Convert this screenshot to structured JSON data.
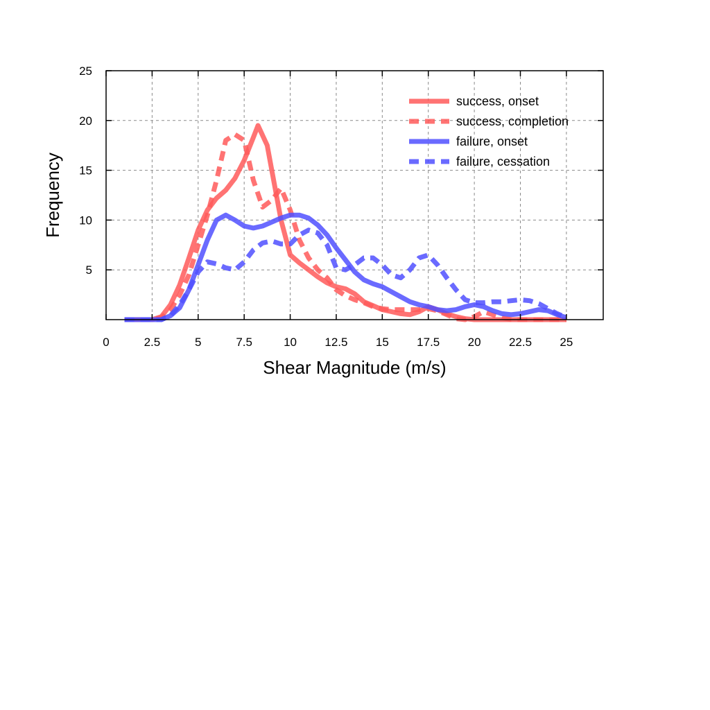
{
  "chart_data": {
    "type": "line",
    "title": "",
    "xlabel": "Shear Magnitude (m/s)",
    "ylabel": "Frequency",
    "xlim": [
      0,
      27
    ],
    "ylim": [
      0,
      25
    ],
    "xticks": [
      0,
      2.5,
      5,
      7.5,
      10,
      12.5,
      15,
      17.5,
      20,
      22.5,
      25
    ],
    "xtick_labels": [
      "0",
      "2.5",
      "5",
      "7.5",
      "10",
      "12.5",
      "15",
      "17.5",
      "20",
      "22.5",
      "25"
    ],
    "yticks": [
      5,
      10,
      15,
      20,
      25
    ],
    "ytick_labels": [
      "5",
      "10",
      "15",
      "20",
      "25"
    ],
    "grid": true,
    "legend_position": "top-right",
    "series": [
      {
        "name": "success, onset",
        "color": "#ff5a5a",
        "dash": "solid",
        "x": [
          1,
          2.5,
          3,
          3.5,
          4,
          4.5,
          5,
          5.5,
          6,
          6.5,
          7,
          7.5,
          8,
          8.25,
          8.75,
          9,
          9.5,
          10,
          10.5,
          11,
          11.5,
          12,
          12.5,
          13,
          13.5,
          14,
          14.5,
          15,
          15.5,
          16,
          16.5,
          17,
          17.5,
          18,
          18.5,
          19,
          19.5,
          20,
          20.5,
          21,
          21.5,
          22,
          22.5,
          23,
          23.5,
          24,
          24.5,
          25
        ],
        "y": [
          0,
          0,
          0.3,
          1.5,
          3.5,
          6.2,
          9,
          11,
          12.2,
          13,
          14.2,
          16,
          18.3,
          19.5,
          17.5,
          15,
          10,
          6.5,
          5.7,
          5,
          4.3,
          3.7,
          3.3,
          3.1,
          2.6,
          1.8,
          1.4,
          1,
          0.8,
          0.6,
          0.5,
          0.8,
          1.3,
          1,
          0.6,
          0.3,
          0.1,
          0,
          0,
          0,
          0,
          0,
          0,
          0,
          0,
          0,
          0,
          0
        ]
      },
      {
        "name": "success, completion",
        "color": "#ff5a5a",
        "dash": "dashed",
        "x": [
          1,
          2.5,
          3,
          3.5,
          4,
          4.5,
          5,
          5.5,
          6,
          6.5,
          7,
          7.5,
          8,
          8.5,
          9,
          9.5,
          10,
          10.5,
          11,
          11.5,
          12,
          12.5,
          13,
          13.5,
          14,
          14.5,
          15,
          15.5,
          16,
          16.5,
          17,
          17.5,
          18,
          18.5,
          19,
          19.5,
          20,
          20.5,
          21,
          21.5,
          22,
          22.5,
          23,
          23.5,
          24,
          24.5,
          25
        ],
        "y": [
          0,
          0,
          0.2,
          1,
          2.5,
          4.5,
          7.5,
          10.5,
          14,
          18,
          18.6,
          18,
          14,
          11.3,
          12,
          13.2,
          11,
          8,
          6.2,
          5,
          4.2,
          3,
          2.4,
          2,
          1.7,
          1.3,
          1.1,
          1,
          1,
          1,
          1,
          1.1,
          0.9,
          0.5,
          0.1,
          0,
          0.3,
          0.8,
          0.5,
          0.2,
          0,
          0,
          0,
          0,
          0,
          0,
          0
        ]
      },
      {
        "name": "failure, onset",
        "color": "#5050ff",
        "dash": "solid",
        "x": [
          1,
          3,
          3.5,
          4,
          4.5,
          5,
          5.5,
          6,
          6.5,
          7,
          7.5,
          8,
          8.5,
          9,
          9.5,
          10,
          10.5,
          11,
          11.5,
          12,
          12.5,
          13,
          13.5,
          14,
          14.5,
          15,
          15.5,
          16,
          16.5,
          17,
          17.5,
          18,
          18.5,
          19,
          19.5,
          20,
          20.5,
          21,
          21.5,
          22,
          22.5,
          23,
          23.5,
          24,
          24.5,
          25
        ],
        "y": [
          0,
          0,
          0.4,
          1.2,
          3,
          5.5,
          8,
          10,
          10.5,
          10,
          9.4,
          9.2,
          9.4,
          9.8,
          10.2,
          10.5,
          10.5,
          10.2,
          9.5,
          8.5,
          7.2,
          6,
          4.8,
          4,
          3.6,
          3.3,
          2.8,
          2.3,
          1.8,
          1.5,
          1.3,
          1,
          0.9,
          1,
          1.3,
          1.5,
          1.3,
          0.9,
          0.6,
          0.5,
          0.6,
          0.8,
          1,
          0.9,
          0.5,
          0.2
        ]
      },
      {
        "name": "failure, cessation",
        "color": "#5050ff",
        "dash": "dashed",
        "x": [
          1,
          3,
          3.5,
          4,
          4.5,
          5,
          5.5,
          6,
          6.5,
          7,
          7.5,
          8,
          8.5,
          9,
          9.5,
          10,
          10.5,
          11,
          11.5,
          12,
          12.5,
          13,
          13.5,
          14,
          14.5,
          15,
          15.5,
          16,
          16.5,
          17,
          17.5,
          18,
          18.5,
          19,
          19.5,
          20,
          20.5,
          21,
          21.5,
          22,
          22.5,
          23,
          23.5,
          24,
          24.5,
          25
        ],
        "y": [
          0,
          0,
          0.4,
          1.5,
          3,
          4.8,
          5.8,
          5.6,
          5.2,
          5,
          5.8,
          7,
          7.7,
          7.9,
          7.6,
          7.6,
          8.5,
          9,
          8.7,
          7.5,
          5.2,
          5,
          5.5,
          6.2,
          6.2,
          5.5,
          4.5,
          4.2,
          5,
          6.2,
          6.5,
          5.5,
          4.2,
          3,
          2,
          1.7,
          1.7,
          1.8,
          1.8,
          1.9,
          2,
          1.9,
          1.6,
          1.1,
          0.6,
          0.2
        ]
      }
    ]
  }
}
